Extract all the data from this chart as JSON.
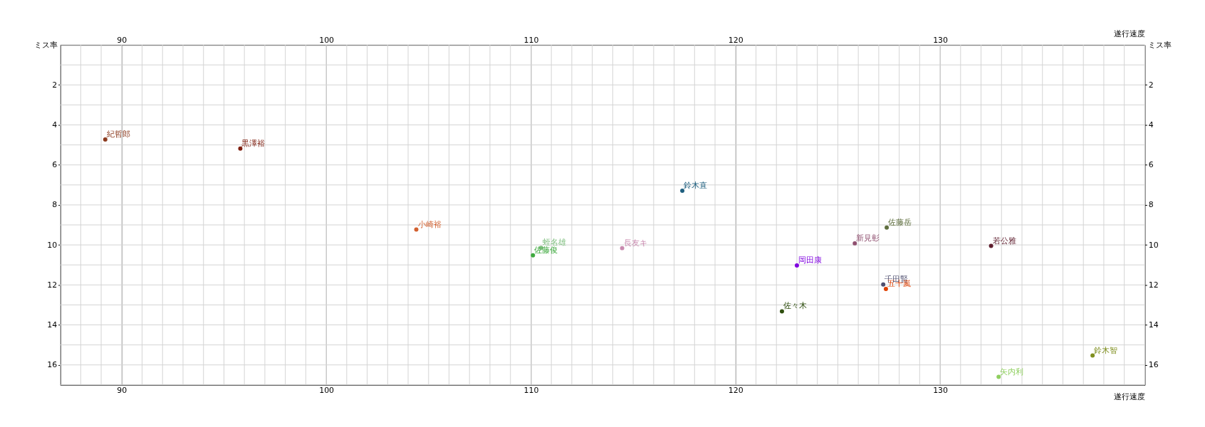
{
  "chart_data": {
    "type": "scatter",
    "xlabel": "遂行速度",
    "x2label": "遂行速度",
    "ylabel": "ミス率",
    "y2label": "ミス率",
    "xlim": [
      87,
      140
    ],
    "xticks": [
      90,
      100,
      110,
      120,
      130
    ],
    "x2lim": [
      87,
      140
    ],
    "x2ticks": [
      90,
      100,
      110,
      120,
      130
    ],
    "ylim": [
      17,
      0
    ],
    "yticks": [
      2,
      4,
      6,
      8,
      10,
      12,
      14,
      16
    ],
    "y2lim": [
      17,
      0
    ],
    "y2ticks": [
      2,
      4,
      6,
      8,
      10,
      12,
      14,
      16
    ],
    "grid": true,
    "marker": "circle",
    "series": [
      {
        "name": "紀哲郎",
        "color": "#8b3a1e",
        "x": [
          89.2
        ],
        "values": [
          4.73
        ]
      },
      {
        "name": "黒澤裕",
        "color": "#7f1f10",
        "x": [
          95.8
        ],
        "values": [
          5.18
        ]
      },
      {
        "name": "鈴木直",
        "color": "#1f5f7f",
        "x": [
          117.4
        ],
        "values": [
          7.29
        ]
      },
      {
        "name": "小崎裕",
        "color": "#d2602f",
        "x": [
          104.4
        ],
        "values": [
          9.23
        ]
      },
      {
        "name": "佐藤俊",
        "color": "#3faa3f",
        "x": [
          110.1
        ],
        "values": [
          10.52
        ]
      },
      {
        "name": "蛭名雄",
        "color": "#7fbf7f",
        "x": [
          110.5
        ],
        "values": [
          10.15
        ]
      },
      {
        "name": "長友キ",
        "color": "#c98aaf",
        "x": [
          114.46
        ],
        "values": [
          10.16
        ]
      },
      {
        "name": "佐藤岳",
        "color": "#5f6f3f",
        "x": [
          127.39
        ],
        "values": [
          9.13
        ]
      },
      {
        "name": "新見彰",
        "color": "#8f4f6f",
        "x": [
          125.83
        ],
        "values": [
          9.92
        ]
      },
      {
        "name": "若公雅",
        "color": "#5f1f2f",
        "x": [
          132.49
        ],
        "values": [
          10.05
        ]
      },
      {
        "name": "岡田康",
        "color": "#7f00df",
        "x": [
          123.0
        ],
        "values": [
          11.03
        ]
      },
      {
        "name": "千田賢",
        "color": "#4f4f6f",
        "x": [
          127.22
        ],
        "values": [
          11.98
        ]
      },
      {
        "name": "五十嵐",
        "color": "#df3f00",
        "x": [
          127.35
        ],
        "values": [
          12.2
        ]
      },
      {
        "name": "佐々木",
        "color": "#2f4f0f",
        "x": [
          122.27
        ],
        "values": [
          13.32
        ]
      },
      {
        "name": "鈴木智",
        "color": "#7f8f1f",
        "x": [
          137.45
        ],
        "values": [
          15.53
        ]
      },
      {
        "name": "矢内利",
        "color": "#8fcf5f",
        "x": [
          132.86
        ],
        "values": [
          16.6
        ]
      }
    ]
  }
}
